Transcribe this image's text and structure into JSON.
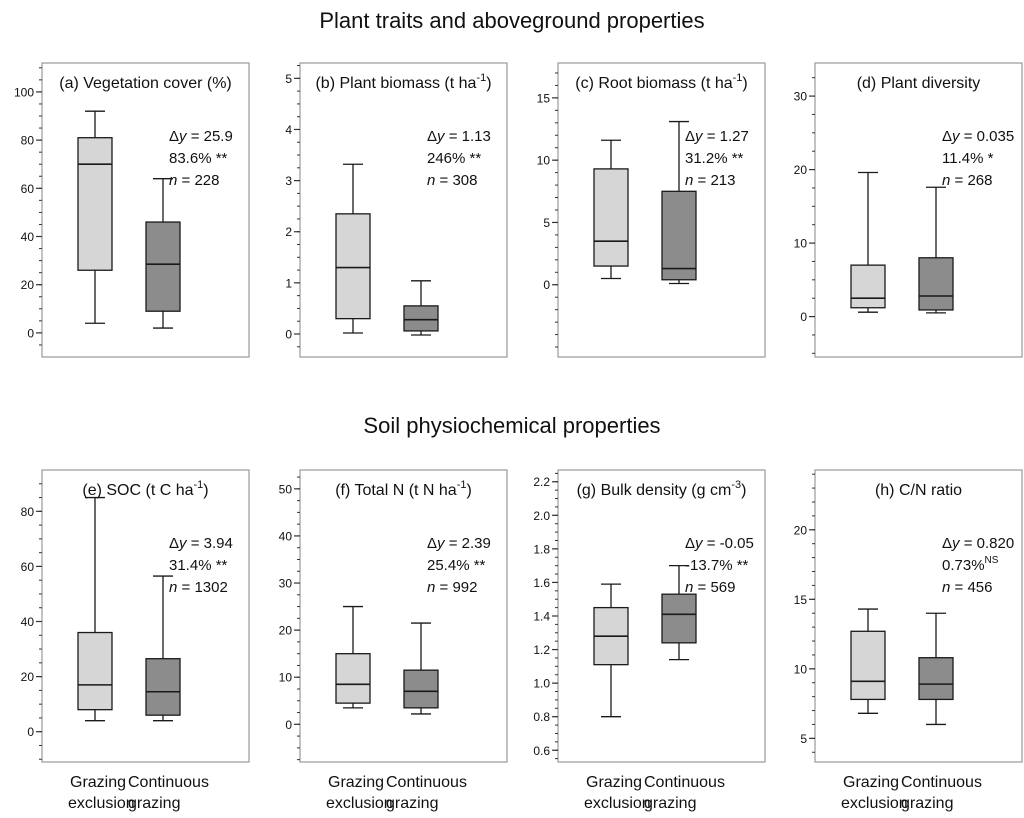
{
  "section_titles": [
    "Plant traits and aboveground properties",
    "Soil physiochemical properties"
  ],
  "groups": [
    "Grazing exclusion",
    "Continuous grazing"
  ],
  "colors": {
    "exclusion_fill": "#d6d6d6",
    "grazing_fill": "#8c8c8c",
    "stroke": "#1a1a1a",
    "frame": "#9a9a9a"
  },
  "chart_data": [
    {
      "type": "box",
      "title": "(a) Vegetation cover (%)",
      "ylim": [
        -10,
        112
      ],
      "yticks": [
        0,
        20,
        40,
        60,
        80,
        100
      ],
      "ytick_labels": [
        "0",
        "20",
        "40",
        "60",
        "80",
        "100"
      ],
      "minor_step": 5,
      "boxes": [
        {
          "group": "Grazing exclusion",
          "whisker_low": 4,
          "q1": 26,
          "median": 70,
          "q3": 81,
          "whisker_high": 92
        },
        {
          "group": "Continuous grazing",
          "whisker_low": 2,
          "q1": 9,
          "median": 28.5,
          "q3": 46,
          "whisker_high": 64
        }
      ],
      "stats": {
        "dy": "25.9",
        "pct": "83.6% **",
        "sup": "",
        "n": "228"
      }
    },
    {
      "type": "box",
      "title": "(b) Plant biomass (t ha",
      "title_sup": "-1",
      "title_end": ")",
      "ylim": [
        -0.45,
        5.3
      ],
      "yticks": [
        0,
        1,
        2,
        3,
        4,
        5
      ],
      "ytick_labels": [
        "0",
        "1",
        "2",
        "3",
        "4",
        "5"
      ],
      "minor_step": 0.25,
      "boxes": [
        {
          "group": "Grazing exclusion",
          "whisker_low": 0.02,
          "q1": 0.3,
          "median": 1.3,
          "q3": 2.35,
          "whisker_high": 3.32
        },
        {
          "group": "Continuous grazing",
          "whisker_low": -0.02,
          "q1": 0.06,
          "median": 0.28,
          "q3": 0.55,
          "whisker_high": 1.04
        }
      ],
      "stats": {
        "dy": "1.13",
        "pct": "246% **",
        "sup": "",
        "n": "308"
      }
    },
    {
      "type": "box",
      "title": "(c) Root biomass (t ha",
      "title_sup": "-1",
      "title_end": ")",
      "ylim": [
        -5.8,
        17.8
      ],
      "yticks": [
        0,
        5,
        10,
        15
      ],
      "ytick_labels": [
        "0",
        "5",
        "10",
        "15"
      ],
      "minor_step": 1,
      "boxes": [
        {
          "group": "Grazing exclusion",
          "whisker_low": 0.5,
          "q1": 1.5,
          "median": 3.5,
          "q3": 9.3,
          "whisker_high": 11.6
        },
        {
          "group": "Continuous grazing",
          "whisker_low": 0.1,
          "q1": 0.4,
          "median": 1.3,
          "q3": 7.5,
          "whisker_high": 13.1
        }
      ],
      "stats": {
        "dy": "1.27",
        "pct": "31.2% **",
        "sup": "",
        "n": "213"
      }
    },
    {
      "type": "box",
      "title": "(d) Plant diversity",
      "ylim": [
        -5.5,
        34.5
      ],
      "yticks": [
        0,
        10,
        20,
        30
      ],
      "ytick_labels": [
        "0",
        "10",
        "20",
        "30"
      ],
      "minor_step": 2.5,
      "boxes": [
        {
          "group": "Grazing exclusion",
          "whisker_low": 0.6,
          "q1": 1.2,
          "median": 2.5,
          "q3": 7,
          "whisker_high": 19.6
        },
        {
          "group": "Continuous grazing",
          "whisker_low": 0.5,
          "q1": 0.9,
          "median": 2.8,
          "q3": 8,
          "whisker_high": 17.6
        }
      ],
      "stats": {
        "dy": "0.035",
        "pct": "11.4% *",
        "sup": "",
        "n": "268"
      }
    },
    {
      "type": "box",
      "title": "(e) SOC (t C ha",
      "title_sup": "-1",
      "title_end": ")",
      "ylim": [
        -11,
        95
      ],
      "yticks": [
        0,
        20,
        40,
        60,
        80
      ],
      "ytick_labels": [
        "0",
        "20",
        "40",
        "60",
        "80"
      ],
      "minor_step": 5,
      "boxes": [
        {
          "group": "Grazing exclusion",
          "whisker_low": 4,
          "q1": 8,
          "median": 17,
          "q3": 36,
          "whisker_high": 85
        },
        {
          "group": "Continuous grazing",
          "whisker_low": 4,
          "q1": 6,
          "median": 14.5,
          "q3": 26.5,
          "whisker_high": 56.5
        }
      ],
      "stats": {
        "dy": "3.94",
        "pct": "31.4% **",
        "sup": "",
        "n": "1302"
      }
    },
    {
      "type": "box",
      "title": "(f) Total N (t N ha",
      "title_sup": "-1",
      "title_end": ")",
      "ylim": [
        -8,
        54
      ],
      "yticks": [
        0,
        10,
        20,
        30,
        40,
        50
      ],
      "ytick_labels": [
        "0",
        "10",
        "20",
        "30",
        "40",
        "50"
      ],
      "minor_step": 2.5,
      "boxes": [
        {
          "group": "Grazing exclusion",
          "whisker_low": 3.5,
          "q1": 4.5,
          "median": 8.5,
          "q3": 15,
          "whisker_high": 25
        },
        {
          "group": "Continuous grazing",
          "whisker_low": 2.2,
          "q1": 3.5,
          "median": 7,
          "q3": 11.5,
          "whisker_high": 21.5
        }
      ],
      "stats": {
        "dy": "2.39",
        "pct": "25.4% **",
        "sup": "",
        "n": "992"
      }
    },
    {
      "type": "box",
      "title": "(g) Bulk density (g cm",
      "title_sup": "-3",
      "title_end": ")",
      "ylim": [
        0.53,
        2.27
      ],
      "yticks": [
        0.6,
        0.8,
        1.0,
        1.2,
        1.4,
        1.6,
        1.8,
        2.0,
        2.2
      ],
      "ytick_labels": [
        "0.6",
        "0.8",
        "1.0",
        "1.2",
        "1.4",
        "1.6",
        "1.8",
        "2.0",
        "2.2"
      ],
      "minor_step": 0.05,
      "boxes": [
        {
          "group": "Grazing exclusion",
          "whisker_low": 0.8,
          "q1": 1.11,
          "median": 1.28,
          "q3": 1.45,
          "whisker_high": 1.59
        },
        {
          "group": "Continuous grazing",
          "whisker_low": 1.14,
          "q1": 1.24,
          "median": 1.41,
          "q3": 1.53,
          "whisker_high": 1.7
        }
      ],
      "stats": {
        "dy": "-0.05",
        "pct": "-13.7% **",
        "sup": "",
        "n": "569"
      }
    },
    {
      "type": "box",
      "title": "(h) C/N ratio",
      "ylim": [
        3.3,
        24.3
      ],
      "yticks": [
        5,
        10,
        15,
        20
      ],
      "ytick_labels": [
        "5",
        "10",
        "15",
        "20"
      ],
      "minor_step": 1,
      "boxes": [
        {
          "group": "Grazing exclusion",
          "whisker_low": 6.8,
          "q1": 7.8,
          "median": 9.1,
          "q3": 12.7,
          "whisker_high": 14.3
        },
        {
          "group": "Continuous grazing",
          "whisker_low": 6,
          "q1": 7.8,
          "median": 8.9,
          "q3": 10.8,
          "whisker_high": 14
        }
      ],
      "stats": {
        "dy": "0.820",
        "pct": "0.73%",
        "sup": "NS",
        "n": "456"
      }
    }
  ]
}
